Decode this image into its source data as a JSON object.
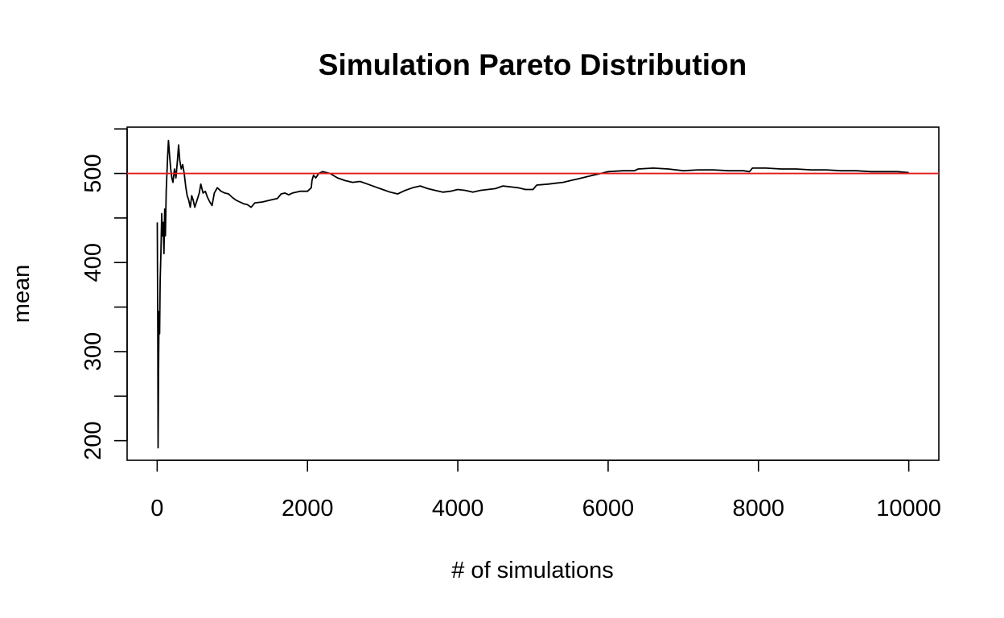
{
  "chart_data": {
    "type": "line",
    "title": "Simulation Pareto Distribution",
    "xlabel": "# of simulations",
    "ylabel": "mean",
    "xlim": [
      -400,
      10400
    ],
    "ylim": [
      178,
      552
    ],
    "x_ticks": [
      0,
      2000,
      4000,
      6000,
      8000,
      10000
    ],
    "y_ticks": [
      200,
      250,
      300,
      350,
      400,
      450,
      500,
      550
    ],
    "y_tick_labels": [
      "200",
      "",
      "300",
      "",
      "400",
      "",
      "500",
      ""
    ],
    "grid": false,
    "series": [
      {
        "color": "#000000",
        "points": [
          [
            1,
            445
          ],
          [
            8,
            330
          ],
          [
            12,
            192
          ],
          [
            18,
            280
          ],
          [
            25,
            345
          ],
          [
            32,
            320
          ],
          [
            40,
            380
          ],
          [
            50,
            410
          ],
          [
            60,
            455
          ],
          [
            70,
            430
          ],
          [
            80,
            445
          ],
          [
            90,
            410
          ],
          [
            100,
            460
          ],
          [
            110,
            430
          ],
          [
            120,
            480
          ],
          [
            130,
            500
          ],
          [
            140,
            520
          ],
          [
            150,
            537
          ],
          [
            165,
            520
          ],
          [
            180,
            505
          ],
          [
            195,
            495
          ],
          [
            210,
            490
          ],
          [
            230,
            505
          ],
          [
            250,
            495
          ],
          [
            270,
            515
          ],
          [
            285,
            532
          ],
          [
            300,
            515
          ],
          [
            320,
            505
          ],
          [
            340,
            510
          ],
          [
            360,
            500
          ],
          [
            380,
            485
          ],
          [
            400,
            475
          ],
          [
            420,
            470
          ],
          [
            440,
            462
          ],
          [
            460,
            475
          ],
          [
            480,
            470
          ],
          [
            500,
            462
          ],
          [
            530,
            470
          ],
          [
            560,
            478
          ],
          [
            580,
            488
          ],
          [
            610,
            478
          ],
          [
            640,
            480
          ],
          [
            670,
            473
          ],
          [
            700,
            468
          ],
          [
            730,
            464
          ],
          [
            760,
            478
          ],
          [
            800,
            484
          ],
          [
            850,
            480
          ],
          [
            900,
            478
          ],
          [
            950,
            477
          ],
          [
            1000,
            473
          ],
          [
            1050,
            470
          ],
          [
            1100,
            468
          ],
          [
            1150,
            466
          ],
          [
            1200,
            465
          ],
          [
            1250,
            462
          ],
          [
            1300,
            467
          ],
          [
            1400,
            468
          ],
          [
            1500,
            470
          ],
          [
            1600,
            472
          ],
          [
            1650,
            477
          ],
          [
            1700,
            478
          ],
          [
            1750,
            476
          ],
          [
            1800,
            478
          ],
          [
            1900,
            480
          ],
          [
            2000,
            480
          ],
          [
            2050,
            484
          ],
          [
            2060,
            492
          ],
          [
            2080,
            498
          ],
          [
            2110,
            495
          ],
          [
            2150,
            500
          ],
          [
            2200,
            502
          ],
          [
            2300,
            500
          ],
          [
            2400,
            495
          ],
          [
            2500,
            492
          ],
          [
            2600,
            490
          ],
          [
            2700,
            491
          ],
          [
            2800,
            488
          ],
          [
            2900,
            485
          ],
          [
            3000,
            482
          ],
          [
            3100,
            479
          ],
          [
            3200,
            477
          ],
          [
            3300,
            481
          ],
          [
            3400,
            484
          ],
          [
            3500,
            486
          ],
          [
            3600,
            483
          ],
          [
            3700,
            481
          ],
          [
            3800,
            479
          ],
          [
            3900,
            480
          ],
          [
            4000,
            482
          ],
          [
            4100,
            481
          ],
          [
            4200,
            479
          ],
          [
            4300,
            481
          ],
          [
            4400,
            482
          ],
          [
            4500,
            483
          ],
          [
            4600,
            486
          ],
          [
            4700,
            485
          ],
          [
            4800,
            484
          ],
          [
            4900,
            482
          ],
          [
            5000,
            482
          ],
          [
            5050,
            487
          ],
          [
            5200,
            488
          ],
          [
            5300,
            489
          ],
          [
            5400,
            490
          ],
          [
            5500,
            492
          ],
          [
            5600,
            494
          ],
          [
            5700,
            496
          ],
          [
            5800,
            498
          ],
          [
            5900,
            500
          ],
          [
            6000,
            502
          ],
          [
            6200,
            503
          ],
          [
            6350,
            503
          ],
          [
            6400,
            505
          ],
          [
            6600,
            506
          ],
          [
            6800,
            505
          ],
          [
            7000,
            503
          ],
          [
            7200,
            504
          ],
          [
            7400,
            504
          ],
          [
            7600,
            503
          ],
          [
            7800,
            503
          ],
          [
            7880,
            502
          ],
          [
            7920,
            506
          ],
          [
            8100,
            506
          ],
          [
            8300,
            505
          ],
          [
            8500,
            505
          ],
          [
            8700,
            504
          ],
          [
            8900,
            504
          ],
          [
            9100,
            503
          ],
          [
            9300,
            503
          ],
          [
            9500,
            502
          ],
          [
            9700,
            502
          ],
          [
            9850,
            502
          ],
          [
            10000,
            501
          ]
        ]
      }
    ],
    "reference_line": {
      "y": 500,
      "color": "#e41a1c"
    }
  }
}
